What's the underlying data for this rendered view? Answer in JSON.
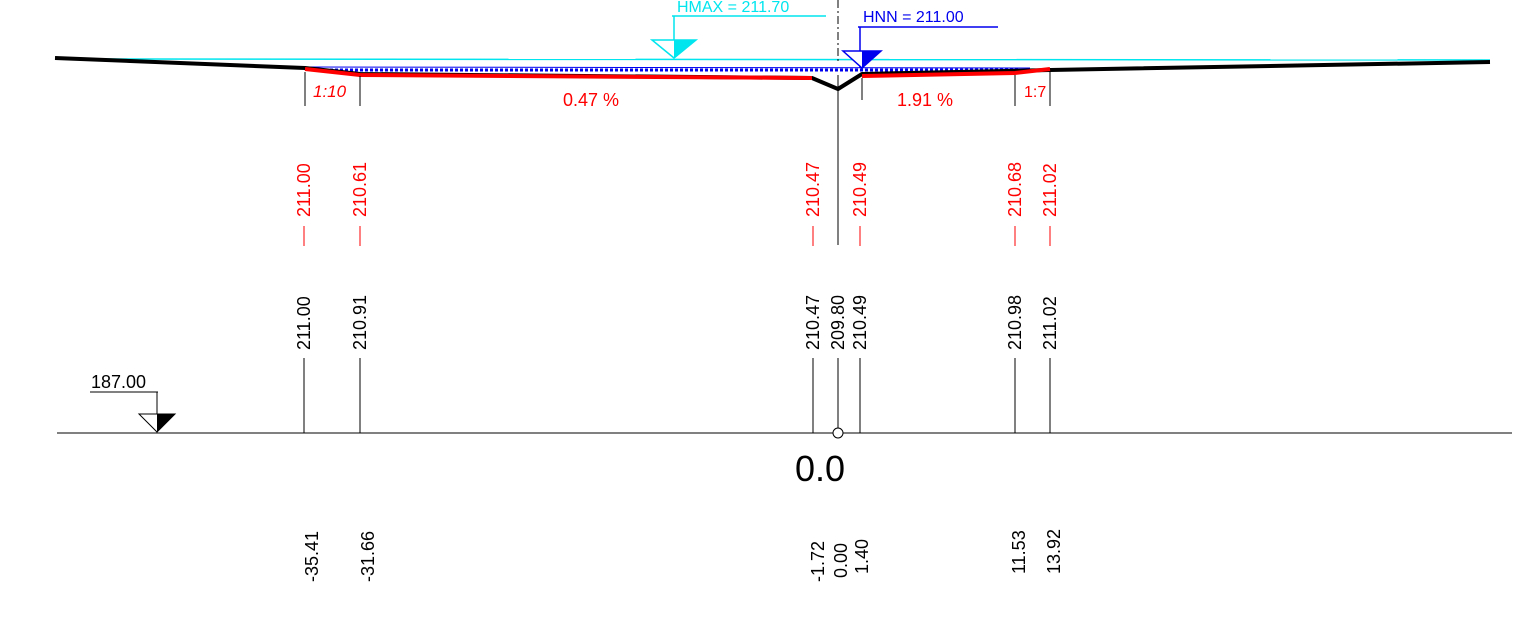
{
  "labels": {
    "hmax": "HMAX = 211.70",
    "hnn": "HNN = 211.00",
    "datum": "187.00",
    "center_station": "0.0",
    "slope_left": "1:10",
    "slope_right": "1:7",
    "grade_left": "0.47 %",
    "grade_right": "1.91 %"
  },
  "red_elevations": [
    "211.00",
    "210.61",
    "210.47",
    "210.49",
    "210.68",
    "211.02"
  ],
  "black_elevations": [
    "211.00",
    "210.91",
    "210.47",
    "209.80",
    "210.49",
    "210.98",
    "211.02"
  ],
  "offsets": [
    "-35.41",
    "-31.66",
    "-1.72",
    "0.00",
    "1.40",
    "11.53",
    "13.92"
  ],
  "colors": {
    "hmax": "#00e5ee",
    "hnn": "#0000ee",
    "design": "#ff0000",
    "existing": "#000000",
    "text": "#000000"
  }
}
